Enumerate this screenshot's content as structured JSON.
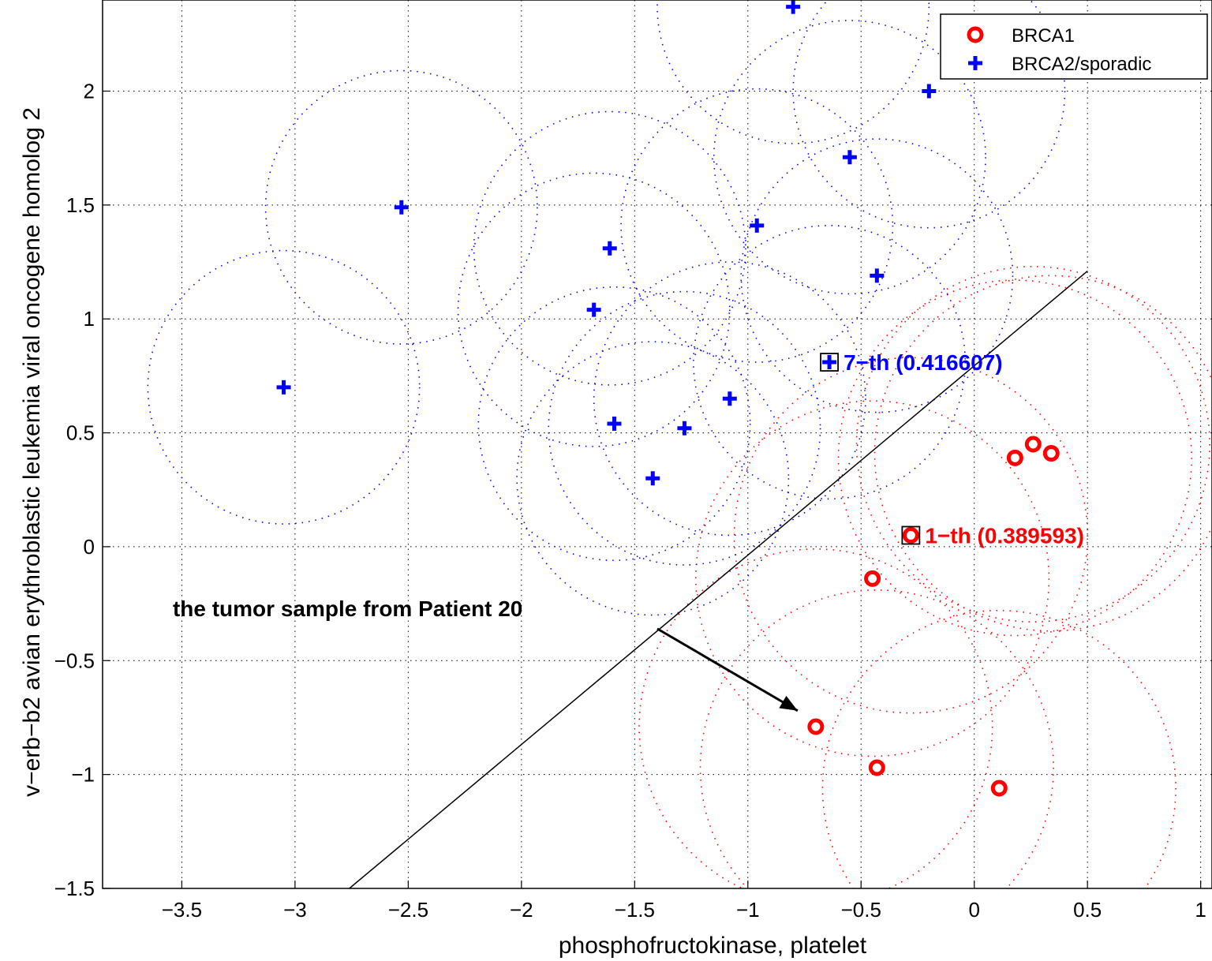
{
  "chart_data": {
    "type": "scatter",
    "title": "",
    "xlabel": "phosphofructokinase, platelet",
    "ylabel": "v−erb−b2 avian erythroblastic leukemia viral oncogene homolog 2",
    "xlim": [
      -3.85,
      1.05
    ],
    "ylim": [
      -1.5,
      2.4
    ],
    "grid": true,
    "legend_position": "top-right",
    "x_ticks": [
      -3.5,
      -3,
      -2.5,
      -2,
      -1.5,
      -1,
      -0.5,
      0,
      0.5,
      1
    ],
    "x_tick_labels": [
      "−3.5",
      "−3",
      "−2.5",
      "−2",
      "−1.5",
      "−1",
      "−0.5",
      "0",
      "0.5",
      "1"
    ],
    "y_ticks": [
      -1.5,
      -1,
      -0.5,
      0,
      0.5,
      1,
      1.5,
      2
    ],
    "y_tick_labels": [
      "−1.5",
      "−1",
      "−0.5",
      "0",
      "0.5",
      "1",
      "1.5",
      "2"
    ],
    "series": [
      {
        "name": "BRCA1",
        "marker": "circle",
        "color": "#ff0000",
        "circle_radius": 0.78,
        "points": [
          {
            "x": 0.18,
            "y": 0.39
          },
          {
            "x": 0.26,
            "y": 0.45
          },
          {
            "x": 0.34,
            "y": 0.41
          },
          {
            "x": -0.28,
            "y": 0.05
          },
          {
            "x": -0.45,
            "y": -0.14
          },
          {
            "x": -0.7,
            "y": -0.79
          },
          {
            "x": -0.43,
            "y": -0.97
          },
          {
            "x": 0.11,
            "y": -1.06
          }
        ]
      },
      {
        "name": "BRCA2/sporadic",
        "marker": "plus",
        "color": "#0000ff",
        "circle_radius": 0.6,
        "points": [
          {
            "x": -3.05,
            "y": 0.7
          },
          {
            "x": -2.53,
            "y": 1.49
          },
          {
            "x": -1.61,
            "y": 1.31
          },
          {
            "x": -1.68,
            "y": 1.04
          },
          {
            "x": -1.59,
            "y": 0.54
          },
          {
            "x": -1.42,
            "y": 0.3
          },
          {
            "x": -1.28,
            "y": 0.52
          },
          {
            "x": -1.08,
            "y": 0.65
          },
          {
            "x": -0.96,
            "y": 1.41
          },
          {
            "x": -0.64,
            "y": 0.81
          },
          {
            "x": -0.55,
            "y": 1.71
          },
          {
            "x": -0.43,
            "y": 1.19
          },
          {
            "x": -0.2,
            "y": 2.0
          },
          {
            "x": -0.8,
            "y": 2.37
          }
        ]
      }
    ],
    "decision_line": {
      "x1": -2.76,
      "y1": -1.5,
      "x2": 0.5,
      "y2": 1.21
    },
    "highlighted": [
      {
        "x": -0.64,
        "y": 0.81,
        "label": "7−th (0.416607)",
        "color": "#0000ff"
      },
      {
        "x": -0.28,
        "y": 0.05,
        "label": "1−th (0.389593)",
        "color": "#ff0000"
      }
    ],
    "annotation": {
      "text": "the tumor  sample from Patient 20",
      "text_x": -3.54,
      "text_y": -0.27,
      "arrow_from": {
        "x": -1.4,
        "y": -0.36
      },
      "arrow_to": {
        "x": -0.78,
        "y": -0.72
      }
    }
  }
}
